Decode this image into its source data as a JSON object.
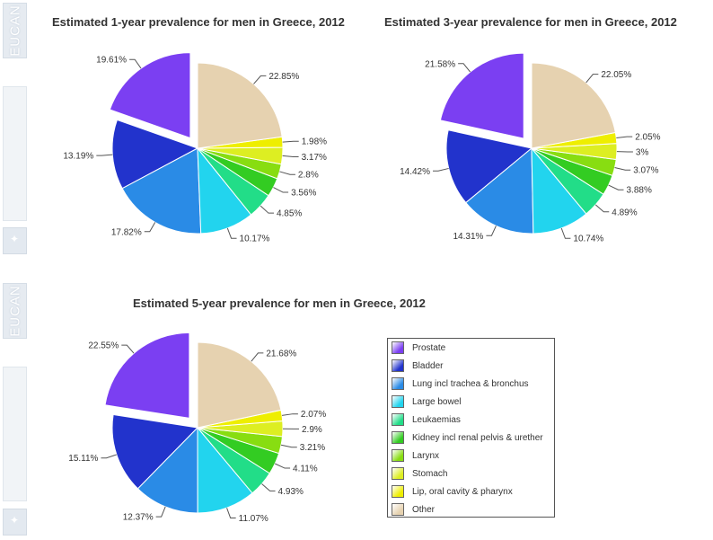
{
  "sidebar": {
    "brand_top": "EUCAN",
    "brand_bottom": "EUCAN"
  },
  "legend": {
    "items": [
      {
        "label": "Prostate",
        "color": "#7b3ff2"
      },
      {
        "label": "Bladder",
        "color": "#2233cc"
      },
      {
        "label": "Lung incl trachea & bronchus",
        "color": "#2a8be6"
      },
      {
        "label": "Large bowel",
        "color": "#22d4ee"
      },
      {
        "label": "Leukaemias",
        "color": "#22dd88"
      },
      {
        "label": "Kidney incl renal pelvis & urether",
        "color": "#33cc22"
      },
      {
        "label": "Larynx",
        "color": "#88dd11"
      },
      {
        "label": "Stomach",
        "color": "#ddee22"
      },
      {
        "label": "Lip, oral cavity & pharynx",
        "color": "#eeee00"
      },
      {
        "label": "Other",
        "color": "#e6d2b0"
      }
    ]
  },
  "chart_data": [
    {
      "type": "pie",
      "title": "Estimated 1-year prevalence for men in Greece, 2012",
      "categories": [
        "Prostate",
        "Bladder",
        "Lung incl trachea & bronchus",
        "Large bowel",
        "Leukaemias",
        "Kidney incl renal pelvis & urether",
        "Larynx",
        "Stomach",
        "Lip, oral cavity & pharynx",
        "Other"
      ],
      "values": [
        19.61,
        13.19,
        17.82,
        10.17,
        4.85,
        3.56,
        2.8,
        3.17,
        1.98,
        22.85
      ],
      "labels": [
        "19.61%",
        "13.19%",
        "17.82%",
        "10.17%",
        "4.85%",
        "3.56%",
        "2.8%",
        "3.17%",
        "1.98%",
        "22.85%"
      ],
      "exploded": "Prostate"
    },
    {
      "type": "pie",
      "title": "Estimated 3-year prevalence for men in Greece, 2012",
      "categories": [
        "Prostate",
        "Bladder",
        "Lung incl trachea & bronchus",
        "Large bowel",
        "Leukaemias",
        "Kidney incl renal pelvis & urether",
        "Larynx",
        "Stomach",
        "Lip, oral cavity & pharynx",
        "Other"
      ],
      "values": [
        21.58,
        14.42,
        14.31,
        10.74,
        4.89,
        3.88,
        3.07,
        3,
        2.05,
        22.05
      ],
      "labels": [
        "21.58%",
        "14.42%",
        "14.31%",
        "10.74%",
        "4.89%",
        "3.88%",
        "3.07%",
        "3%",
        "2.05%",
        "22.05%"
      ],
      "exploded": "Prostate"
    },
    {
      "type": "pie",
      "title": "Estimated 5-year prevalence for men in Greece, 2012",
      "categories": [
        "Prostate",
        "Bladder",
        "Lung incl trachea & bronchus",
        "Large bowel",
        "Leukaemias",
        "Kidney incl renal pelvis & urether",
        "Larynx",
        "Stomach",
        "Lip, oral cavity & pharynx",
        "Other"
      ],
      "values": [
        22.55,
        15.11,
        12.37,
        11.07,
        4.93,
        4.11,
        3.21,
        2.9,
        2.07,
        21.68
      ],
      "labels": [
        "22.55%",
        "15.11%",
        "12.37%",
        "11.07%",
        "4.93%",
        "4.11%",
        "3.21%",
        "2.9%",
        "2.07%",
        "21.68%"
      ],
      "exploded": "Prostate"
    }
  ]
}
